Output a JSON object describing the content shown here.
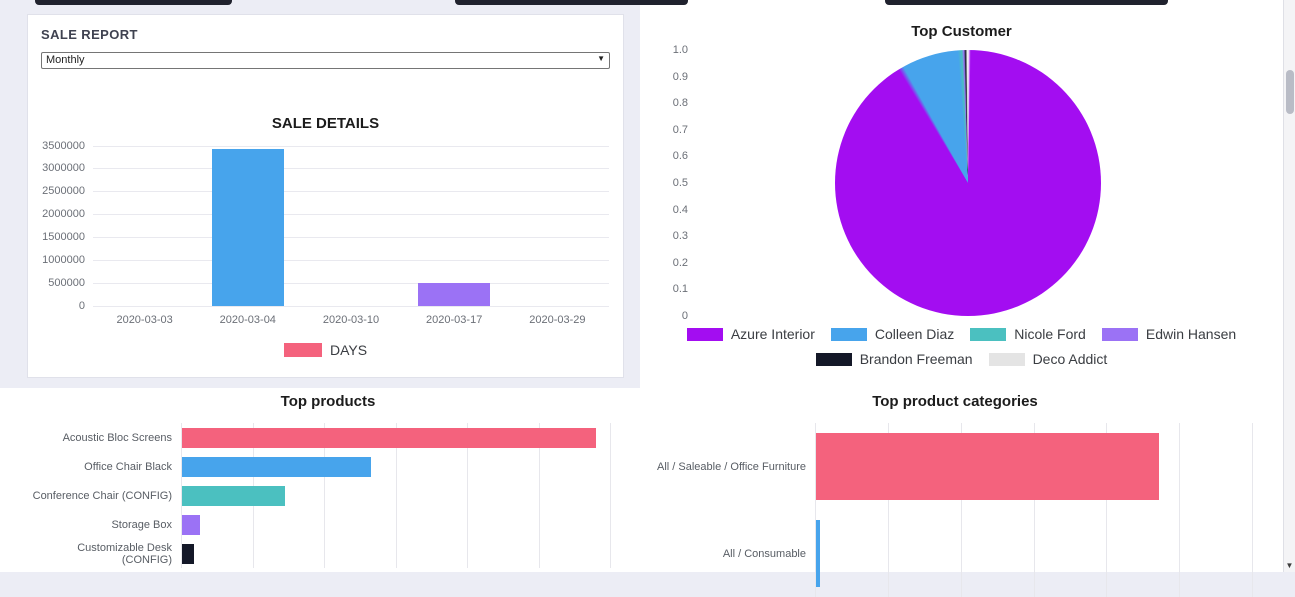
{
  "page": {
    "background": "#ecedf5",
    "card_background": "#ffffff",
    "fragment_color": "#20222e",
    "scrollbar": {
      "track": "#f4f4f6",
      "thumb": "#b9bcc6",
      "down_arrow": "▼"
    }
  },
  "sale_report": {
    "title": "SALE REPORT",
    "period_value": "Monthly"
  },
  "chart_data": [
    {
      "type": "bar",
      "title": "SALE DETAILS",
      "categories": [
        "2020-03-03",
        "2020-03-04",
        "2020-03-10",
        "2020-03-17",
        "2020-03-29"
      ],
      "values": [
        0,
        3420000,
        0,
        500000,
        0
      ],
      "point_colors": [
        "#f4627d",
        "#47a4ec",
        "#4bc0c0",
        "#9b72f5",
        "#141828"
      ],
      "series": [
        {
          "name": "DAYS",
          "color": "#f4627d"
        }
      ],
      "ylim": [
        0,
        3500000
      ],
      "yticks": [
        3500000,
        3000000,
        2500000,
        2000000,
        1500000,
        1000000,
        500000,
        0
      ],
      "legend_position": "bottom",
      "grid": true
    },
    {
      "type": "pie",
      "title": "Top Customer",
      "labels": [
        "Azure Interior",
        "Colleen Diaz",
        "Nicole Ford",
        "Edwin Hansen",
        "Brandon Freeman",
        "Deco Addict"
      ],
      "values": [
        0.916,
        0.075,
        0.003,
        0.002,
        0.002,
        0.002
      ],
      "colors": [
        "#a30df1",
        "#47a4ec",
        "#4bc0c0",
        "#9b72f5",
        "#141828",
        "#e4e4e4"
      ],
      "axis_ticks": [
        "1.0",
        "0.9",
        "0.8",
        "0.7",
        "0.6",
        "0.5",
        "0.4",
        "0.3",
        "0.2",
        "0.1",
        "0"
      ],
      "legend_position": "bottom"
    },
    {
      "type": "bar-horizontal",
      "title": "Top products",
      "categories": [
        "Acoustic Bloc Screens",
        "Office Chair Black",
        "Conference Chair (CONFIG)",
        "Storage Box",
        "Customizable Desk (CONFIG)"
      ],
      "values": [
        96.5,
        44,
        24,
        4.2,
        2.8
      ],
      "xlim": [
        0,
        100
      ],
      "colors": [
        "#f4627d",
        "#47a4ec",
        "#4bc0c0",
        "#9b72f5",
        "#141828"
      ],
      "grid": true
    },
    {
      "type": "bar-horizontal",
      "title": "Top product categories",
      "categories": [
        "All / Saleable / Office Furniture",
        "All / Consumable"
      ],
      "values": [
        78.5,
        1
      ],
      "xlim": [
        0,
        100
      ],
      "colors": [
        "#f4627d",
        "#47a4ec"
      ],
      "grid": true
    }
  ]
}
